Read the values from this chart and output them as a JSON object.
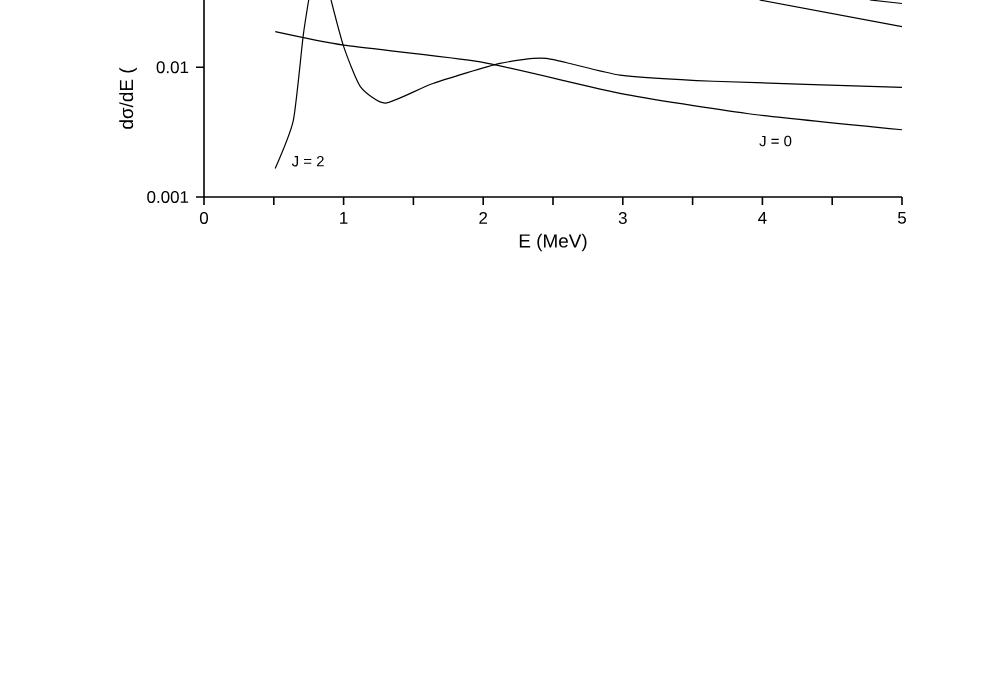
{
  "chart_data": {
    "type": "line",
    "xlabel": "E (MeV)",
    "ylabel": "dσ/dE (",
    "log": "y",
    "xlim": [
      0,
      5
    ],
    "ylim": [
      0.001,
      0.033
    ],
    "xticks": [
      0,
      {
        "value": 0.5,
        "label": null
      },
      1,
      {
        "value": 1.5,
        "label": null
      },
      2,
      {
        "value": 2.5,
        "label": null
      },
      3,
      {
        "value": 3.5,
        "label": null
      },
      4,
      {
        "value": 4.5,
        "label": null
      },
      5
    ],
    "yticks": [
      0.001,
      0.01
    ],
    "marker": "none",
    "line_style": "solid",
    "series": [
      {
        "name": "J = 2",
        "color": "#000000",
        "x": [
          0.51,
          0.64,
          0.71,
          0.75
        ],
        "values": [
          0.00166,
          0.0039,
          0.0173,
          0.033
        ]
      },
      {
        "color": "#000000",
        "x": [
          0.91,
          1.0,
          1.12,
          1.3,
          1.64,
          2.12,
          2.45,
          2.98,
          3.65,
          5.0
        ],
        "values": [
          0.033,
          0.0145,
          0.0071,
          0.0053,
          0.0075,
          0.0107,
          0.0117,
          0.0087,
          0.0078,
          0.007
        ]
      },
      {
        "name": "J = 0",
        "color": "#000000",
        "x": [
          0.51,
          1.0,
          1.98,
          2.98,
          3.89,
          5.0
        ],
        "values": [
          0.0188,
          0.0148,
          0.011,
          0.0063,
          0.0044,
          0.0033
        ]
      },
      {
        "color": "#000000",
        "x": [
          3.98,
          5.0
        ],
        "values": [
          0.033,
          0.0206
        ]
      },
      {
        "color": "#000000",
        "x": [
          4.77,
          5.0
        ],
        "values": [
          0.033,
          0.031
        ]
      }
    ]
  }
}
